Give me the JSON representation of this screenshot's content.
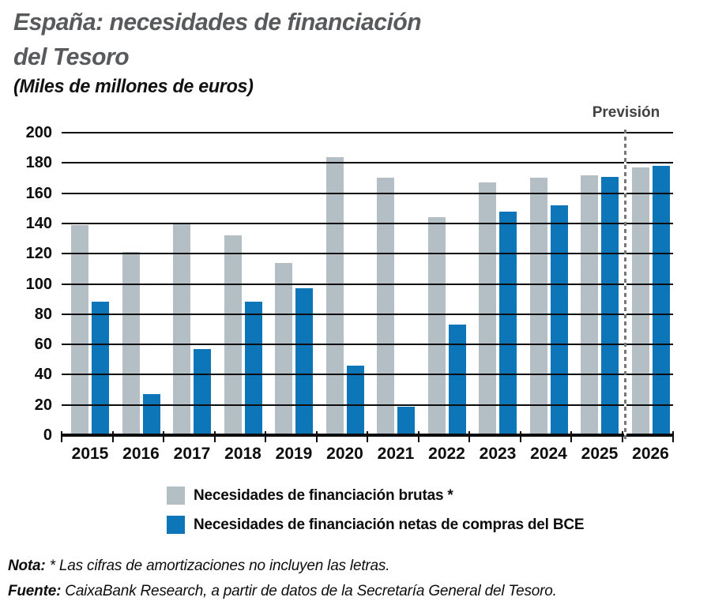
{
  "header": {
    "title": "España: necesidades de financiación\ndel Tesoro",
    "subtitle": "(Miles de millones de euros)"
  },
  "chart_data": {
    "type": "bar",
    "title": "España: necesidades de financiación del Tesoro",
    "subtitle": "(Miles de millones de euros)",
    "categories": [
      "2015",
      "2016",
      "2017",
      "2018",
      "2019",
      "2020",
      "2021",
      "2022",
      "2023",
      "2024",
      "2025",
      "2026"
    ],
    "series": [
      {
        "name": "Necesidades de financiación brutas *",
        "color": "#b3bfc5",
        "values": [
          139,
          121,
          140,
          132,
          114,
          184,
          170,
          144,
          167,
          170,
          172,
          177
        ]
      },
      {
        "name": "Necesidades de financiación netas de compras del BCE",
        "color": "#0c76b8",
        "values": [
          88,
          27,
          57,
          88,
          97,
          46,
          19,
          73,
          148,
          152,
          171,
          178
        ]
      }
    ],
    "ylim": [
      0,
      200
    ],
    "ytick_step": 20,
    "grid": true,
    "legend_position": "bottom",
    "annotation": {
      "label": "Previsión",
      "type": "dashed-vertical-line",
      "between": [
        "2025",
        "2026"
      ]
    }
  },
  "legend": {
    "items": [
      {
        "label": "Necesidades de financiación brutas *",
        "color": "#b3bfc5"
      },
      {
        "label": "Necesidades de financiación netas de compras del BCE",
        "color": "#0c76b8"
      }
    ]
  },
  "notes": {
    "nota_label": "Nota:",
    "nota_text": " * Las cifras de amortizaciones no incluyen las letras.",
    "fuente_label": "Fuente:",
    "fuente_text": " CaixaBank Research, a partir de datos de la Secretaría General del Tesoro."
  },
  "colors": {
    "title": "#58595b",
    "gridline": "#0d0d0d",
    "forecast_line": "#75787b"
  }
}
